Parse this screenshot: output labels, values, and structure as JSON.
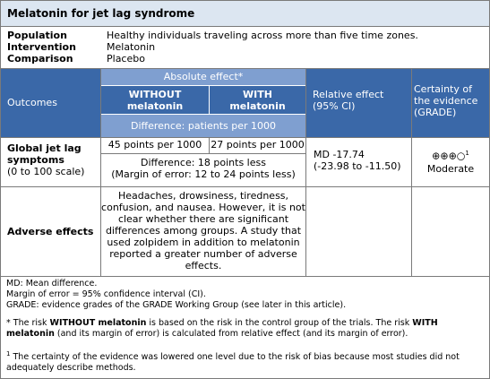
{
  "title": "Melatonin for jet lag syndrome",
  "pico": [
    {
      "label": "Population",
      "value": "Healthy individuals traveling across more than five time zones."
    },
    {
      "label": "Intervention",
      "value": "Melatonin"
    },
    {
      "label": "Comparison",
      "value": "Placebo"
    }
  ],
  "headers": {
    "outcomes": "Outcomes",
    "absolute_effect": "Absolute effect*",
    "without_line1": "WITHOUT",
    "without_line2": "melatonin",
    "with_line1": "WITH",
    "with_line2": "melatonin",
    "difference": "Difference: patients per 1000",
    "relative_line1": "Relative effect",
    "relative_line2": "(95% CI)",
    "certainty_line1": "Certainty of",
    "certainty_line2": "the evidence",
    "certainty_line3": "(GRADE)"
  },
  "rows": {
    "jetlag": {
      "name_line1": "Global jet lag",
      "name_line2": "symptoms",
      "name_line3": "(0 to 100 scale)",
      "without": "45 points per 1000",
      "with": "27 points per 1000",
      "diff_line1": "Difference: 18 points less",
      "diff_line2": "(Margin of error: 12 to 24 points less)",
      "relative_line1": "MD -17.74",
      "relative_line2": "(-23.98 to -11.50)",
      "certainty_symbols": "⊕⊕⊕○",
      "certainty_sup": "1",
      "certainty_label": "Moderate"
    },
    "adverse": {
      "name": "Adverse effects",
      "text_lines": [
        "Headaches, drowsiness, tiredness,",
        "confusion, and nausea. However, it is not",
        "clear whether there are significant",
        "differences among groups. A study that",
        "used zolpidem in addition to melatonin",
        "reported a greater number of adverse",
        "effects."
      ]
    }
  },
  "footer": {
    "md": "MD: Mean difference.",
    "margin": "Margin of error = 95% confidence interval (CI).",
    "grade": "GRADE: evidence grades of the GRADE Working Group (see later in this article).",
    "note1_a": "* The risk ",
    "note1_b": "WITHOUT melatonin",
    "note1_c": " is based on the risk in the control group of the trials. The risk ",
    "note1_d": "WITH",
    "note1_e": "melatonin",
    "note1_f": " (and its margin of error) is calculated from relative effect (and its margin of error).",
    "note2_sup": "1",
    "note2_line1": " The certainty of the evidence was lowered one level due to the risk of bias because most studies did not",
    "note2_line2": "adequately describe methods."
  },
  "colors": {
    "title_bg": "#dce6f1",
    "header_dark": "#3a68a8",
    "header_light": "#7f9fd0",
    "border": "#7a7a7a"
  }
}
